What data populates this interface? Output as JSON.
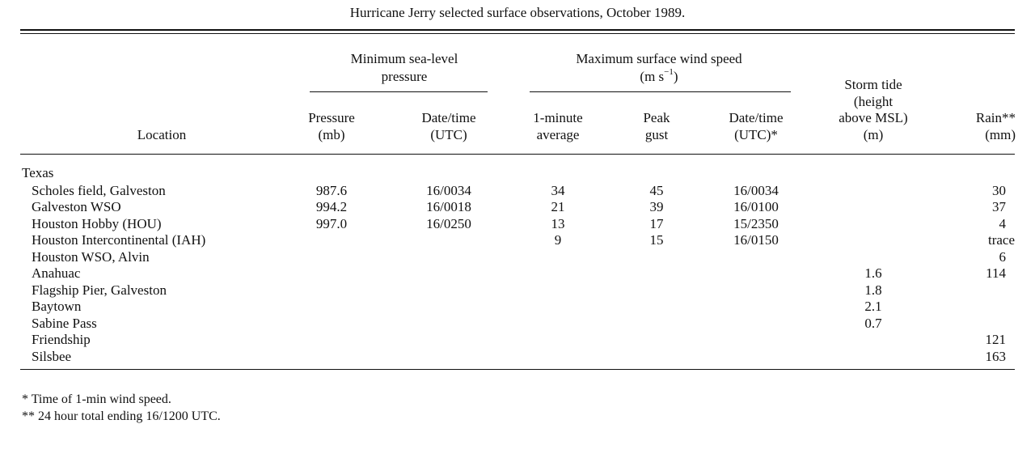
{
  "title": "Hurricane Jerry selected surface observations, October 1989.",
  "headers": {
    "group_pressure": [
      "Minimum sea-level",
      "pressure"
    ],
    "group_wind": [
      "Maximum surface wind speed",
      "(m s",
      "−1",
      ")"
    ],
    "location": "Location",
    "pressure": [
      "Pressure",
      "(mb)"
    ],
    "pressure_datetime": [
      "Date/time",
      "(UTC)"
    ],
    "wind_1min": [
      "1-minute",
      "average"
    ],
    "peak_gust": [
      "Peak",
      "gust"
    ],
    "wind_datetime": [
      "Date/time",
      "(UTC)*"
    ],
    "storm_tide": [
      "Storm tide",
      "(height",
      "above MSL)",
      "(m)"
    ],
    "rain": [
      "Rain**",
      "(mm)"
    ]
  },
  "section": "Texas",
  "rows": [
    {
      "location": "Scholes field, Galveston",
      "pressure": "987.6",
      "pdt": "16/0034",
      "wind": "34",
      "gust": "45",
      "wdt": "16/0034",
      "tide": "",
      "rain": "30"
    },
    {
      "location": "Galveston WSO",
      "pressure": "994.2",
      "pdt": "16/0018",
      "wind": "21",
      "gust": "39",
      "wdt": "16/0100",
      "tide": "",
      "rain": "37"
    },
    {
      "location": "Houston Hobby (HOU)",
      "pressure": "997.0",
      "pdt": "16/0250",
      "wind": "13",
      "gust": "17",
      "wdt": "15/2350",
      "tide": "",
      "rain": "4"
    },
    {
      "location": "Houston Intercontinental (IAH)",
      "pressure": "",
      "pdt": "",
      "wind": "9",
      "gust": "15",
      "wdt": "16/0150",
      "tide": "",
      "rain": "trace"
    },
    {
      "location": "Houston WSO, Alvin",
      "pressure": "",
      "pdt": "",
      "wind": "",
      "gust": "",
      "wdt": "",
      "tide": "",
      "rain": "6"
    },
    {
      "location": "Anahuac",
      "pressure": "",
      "pdt": "",
      "wind": "",
      "gust": "",
      "wdt": "",
      "tide": "1.6",
      "rain": "114"
    },
    {
      "location": "Flagship Pier, Galveston",
      "pressure": "",
      "pdt": "",
      "wind": "",
      "gust": "",
      "wdt": "",
      "tide": "1.8",
      "rain": ""
    },
    {
      "location": "Baytown",
      "pressure": "",
      "pdt": "",
      "wind": "",
      "gust": "",
      "wdt": "",
      "tide": "2.1",
      "rain": ""
    },
    {
      "location": "Sabine Pass",
      "pressure": "",
      "pdt": "",
      "wind": "",
      "gust": "",
      "wdt": "",
      "tide": "0.7",
      "rain": ""
    },
    {
      "location": "Friendship",
      "pressure": "",
      "pdt": "",
      "wind": "",
      "gust": "",
      "wdt": "",
      "tide": "",
      "rain": "121"
    },
    {
      "location": "Silsbee",
      "pressure": "",
      "pdt": "",
      "wind": "",
      "gust": "",
      "wdt": "",
      "tide": "",
      "rain": "163"
    }
  ],
  "footnotes": [
    "* Time of 1-min wind speed.",
    "** 24 hour total ending 16/1200 UTC."
  ]
}
